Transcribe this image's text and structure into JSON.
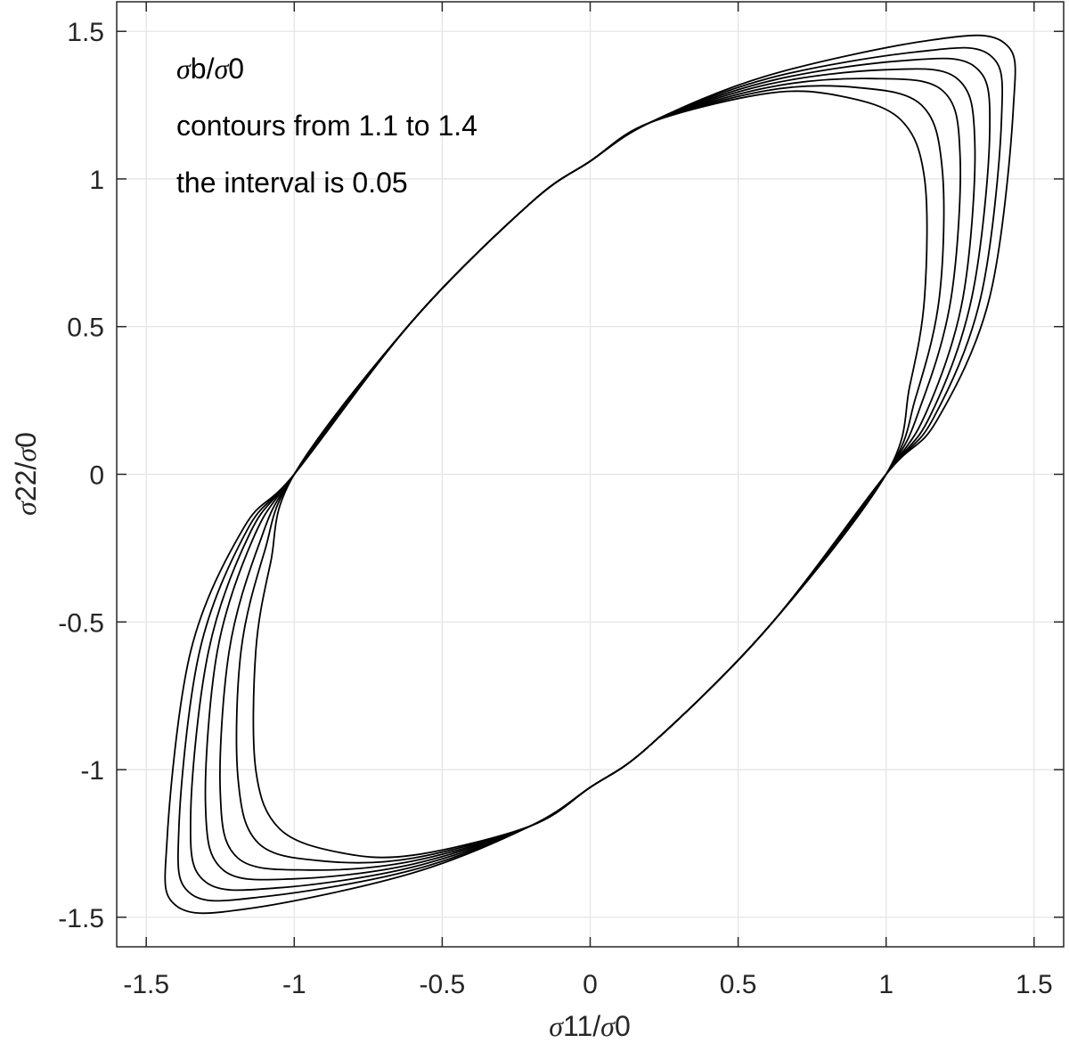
{
  "chart_data": {
    "type": "line",
    "title": "",
    "xlabel_symbol": "σ",
    "xlabel": "11/",
    "xlabel_symbol2": "σ",
    "xlabel_tail": "0",
    "ylabel_symbol": "σ",
    "ylabel": "22/",
    "ylabel_symbol2": "σ",
    "ylabel_tail": "0",
    "xlim": [
      -1.6,
      1.6
    ],
    "ylim": [
      -1.6,
      1.6
    ],
    "xticks": [
      -1.5,
      -1,
      -0.5,
      0,
      0.5,
      1,
      1.5
    ],
    "yticks": [
      -1.5,
      -1,
      -0.5,
      0,
      0.5,
      1,
      1.5
    ],
    "xtick_labels": [
      "-1.5",
      "-1",
      "-0.5",
      "0",
      "0.5",
      "1",
      "1.5"
    ],
    "ytick_labels": [
      "-1.5",
      "-1",
      "-0.5",
      "0",
      "0.5",
      "1",
      "1.5"
    ],
    "grid": true,
    "line_color": "#000000",
    "grid_color": "#e3e3e3",
    "annotations": {
      "line1_symbol": "σ",
      "line1_a": "b/",
      "line1_symbol2": "σ",
      "line1_b": "0",
      "line2": "contours from 1.1 to 1.4",
      "line3": "the interval is 0.05"
    },
    "contour_levels": [
      1.1,
      1.15,
      1.2,
      1.25,
      1.3,
      1.35,
      1.4
    ],
    "series": [
      {
        "level": 1.1,
        "x": [
          -1.0,
          -0.6,
          -0.2,
          0.0,
          0.2,
          0.6,
          0.85,
          1.05,
          1.13,
          1.13,
          1.08,
          1.0,
          0.6,
          0.2,
          0.0,
          -0.2,
          -0.6,
          -0.85,
          -1.05,
          -1.13,
          -1.13,
          -1.08,
          -1.0
        ],
        "y": [
          0.0,
          0.52,
          0.92,
          1.06,
          1.19,
          1.29,
          1.28,
          1.2,
          1.0,
          0.6,
          0.3,
          0.0,
          -0.52,
          -0.92,
          -1.06,
          -1.19,
          -1.29,
          -1.28,
          -1.2,
          -1.0,
          -0.6,
          -0.3,
          0.0
        ]
      },
      {
        "level": 1.15,
        "x": [
          -1.0,
          -0.6,
          -0.2,
          0.0,
          0.2,
          0.6,
          0.9,
          1.12,
          1.19,
          1.18,
          1.1,
          1.0,
          0.6,
          0.2,
          0.0,
          -0.2,
          -0.6,
          -0.9,
          -1.12,
          -1.19,
          -1.18,
          -1.1,
          -1.0
        ],
        "y": [
          0.0,
          0.52,
          0.92,
          1.06,
          1.19,
          1.3,
          1.31,
          1.25,
          1.03,
          0.6,
          0.26,
          0.0,
          -0.52,
          -0.92,
          -1.06,
          -1.19,
          -1.3,
          -1.31,
          -1.25,
          -1.03,
          -0.6,
          -0.26,
          0.0
        ]
      },
      {
        "level": 1.2,
        "x": [
          -1.0,
          -0.6,
          -0.2,
          0.0,
          0.2,
          0.6,
          0.95,
          1.19,
          1.25,
          1.22,
          1.12,
          1.0,
          0.6,
          0.2,
          0.0,
          -0.2,
          -0.6,
          -0.95,
          -1.19,
          -1.25,
          -1.22,
          -1.12,
          -1.0
        ],
        "y": [
          0.0,
          0.52,
          0.92,
          1.06,
          1.19,
          1.31,
          1.34,
          1.3,
          1.08,
          0.6,
          0.24,
          0.0,
          -0.52,
          -0.92,
          -1.06,
          -1.19,
          -1.31,
          -1.34,
          -1.3,
          -1.08,
          -0.6,
          -0.24,
          0.0
        ]
      },
      {
        "level": 1.25,
        "x": [
          -1.0,
          -0.6,
          -0.2,
          0.0,
          0.2,
          0.6,
          1.0,
          1.24,
          1.3,
          1.26,
          1.14,
          1.0,
          0.6,
          0.2,
          0.0,
          -0.2,
          -0.6,
          -1.0,
          -1.24,
          -1.3,
          -1.26,
          -1.14,
          -1.0
        ],
        "y": [
          0.0,
          0.52,
          0.92,
          1.06,
          1.19,
          1.32,
          1.37,
          1.34,
          1.12,
          0.6,
          0.22,
          0.0,
          -0.52,
          -0.92,
          -1.06,
          -1.19,
          -1.32,
          -1.37,
          -1.34,
          -1.12,
          -0.6,
          -0.22,
          0.0
        ]
      },
      {
        "level": 1.3,
        "x": [
          -1.0,
          -0.6,
          -0.2,
          0.0,
          0.2,
          0.6,
          1.05,
          1.3,
          1.35,
          1.29,
          1.15,
          1.0,
          0.6,
          0.2,
          0.0,
          -0.2,
          -0.6,
          -1.05,
          -1.3,
          -1.35,
          -1.29,
          -1.15,
          -1.0
        ],
        "y": [
          0.0,
          0.52,
          0.92,
          1.06,
          1.19,
          1.33,
          1.4,
          1.38,
          1.16,
          0.6,
          0.2,
          0.0,
          -0.52,
          -0.92,
          -1.06,
          -1.19,
          -1.33,
          -1.4,
          -1.38,
          -1.16,
          -0.6,
          -0.2,
          0.0
        ]
      },
      {
        "level": 1.35,
        "x": [
          -1.0,
          -0.6,
          -0.2,
          0.0,
          0.2,
          0.6,
          1.1,
          1.35,
          1.39,
          1.32,
          1.16,
          1.0,
          0.6,
          0.2,
          0.0,
          -0.2,
          -0.6,
          -1.1,
          -1.35,
          -1.39,
          -1.32,
          -1.16,
          -1.0
        ],
        "y": [
          0.0,
          0.52,
          0.92,
          1.06,
          1.19,
          1.34,
          1.43,
          1.42,
          1.2,
          0.6,
          0.19,
          0.0,
          -0.52,
          -0.92,
          -1.06,
          -1.19,
          -1.34,
          -1.43,
          -1.42,
          -1.2,
          -0.6,
          -0.19,
          0.0
        ]
      },
      {
        "level": 1.4,
        "x": [
          -1.0,
          -0.6,
          -0.2,
          0.0,
          0.2,
          0.6,
          1.15,
          1.4,
          1.43,
          1.35,
          1.17,
          1.0,
          0.6,
          0.2,
          0.0,
          -0.2,
          -0.6,
          -1.15,
          -1.4,
          -1.43,
          -1.35,
          -1.17,
          -1.0
        ],
        "y": [
          0.0,
          0.52,
          0.92,
          1.06,
          1.19,
          1.35,
          1.47,
          1.46,
          1.24,
          0.6,
          0.18,
          0.0,
          -0.52,
          -0.92,
          -1.06,
          -1.19,
          -1.35,
          -1.47,
          -1.46,
          -1.24,
          -0.6,
          -0.18,
          0.0
        ]
      }
    ]
  }
}
